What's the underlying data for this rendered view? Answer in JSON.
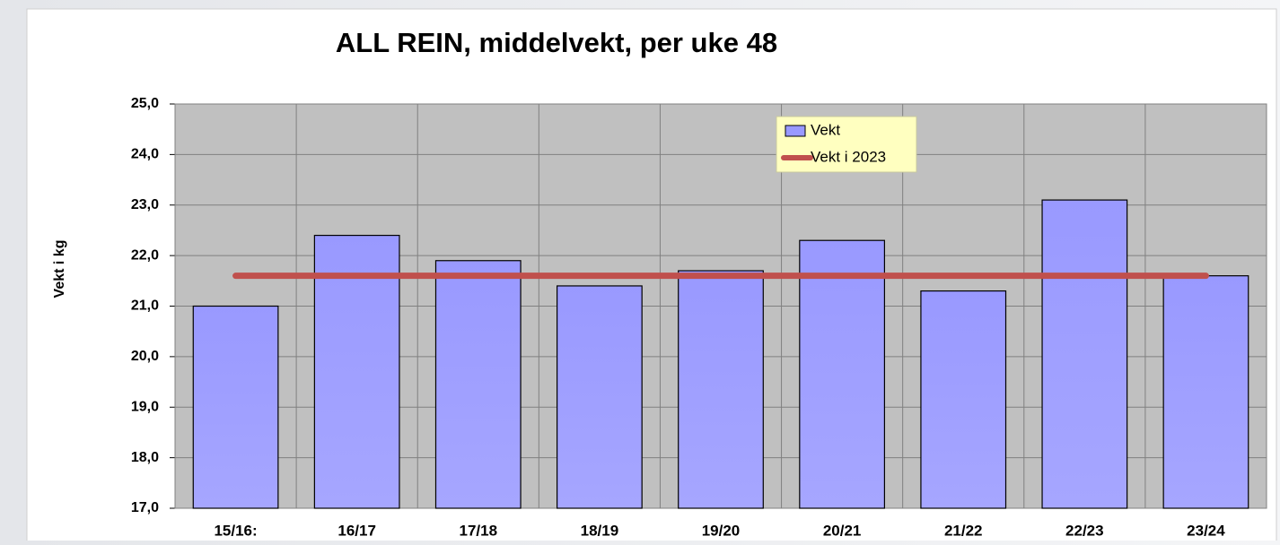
{
  "chart_data": {
    "type": "bar",
    "title": "ALL REIN, middelvekt, per uke 48",
    "y_label": "Vekt i kg",
    "categories": [
      "15/16:",
      "16/17",
      "17/18",
      "18/19",
      "19/20",
      "20/21",
      "21/22",
      "22/23",
      "23/24"
    ],
    "series": [
      {
        "name": "Vekt",
        "type": "bar",
        "color": "#9999ff",
        "values": [
          21.0,
          22.4,
          21.9,
          21.4,
          21.7,
          22.3,
          21.3,
          23.1,
          21.6
        ]
      },
      {
        "name": "Vekt i 2023",
        "type": "line",
        "color": "#c0504d",
        "values": [
          21.6,
          21.6,
          21.6,
          21.6,
          21.6,
          21.6,
          21.6,
          21.6,
          21.6
        ]
      }
    ],
    "ylim": [
      17,
      25
    ],
    "yticks": [
      {
        "value": 17,
        "label": "17,0"
      },
      {
        "value": 18,
        "label": "18,0"
      },
      {
        "value": 19,
        "label": "19,0"
      },
      {
        "value": 20,
        "label": "20,0"
      },
      {
        "value": 21,
        "label": "21,0"
      },
      {
        "value": 22,
        "label": "22,0"
      },
      {
        "value": 23,
        "label": "23,0"
      },
      {
        "value": 24,
        "label": "24,0"
      },
      {
        "value": 25,
        "label": "25,0"
      }
    ],
    "grid": true,
    "legend": "top"
  }
}
